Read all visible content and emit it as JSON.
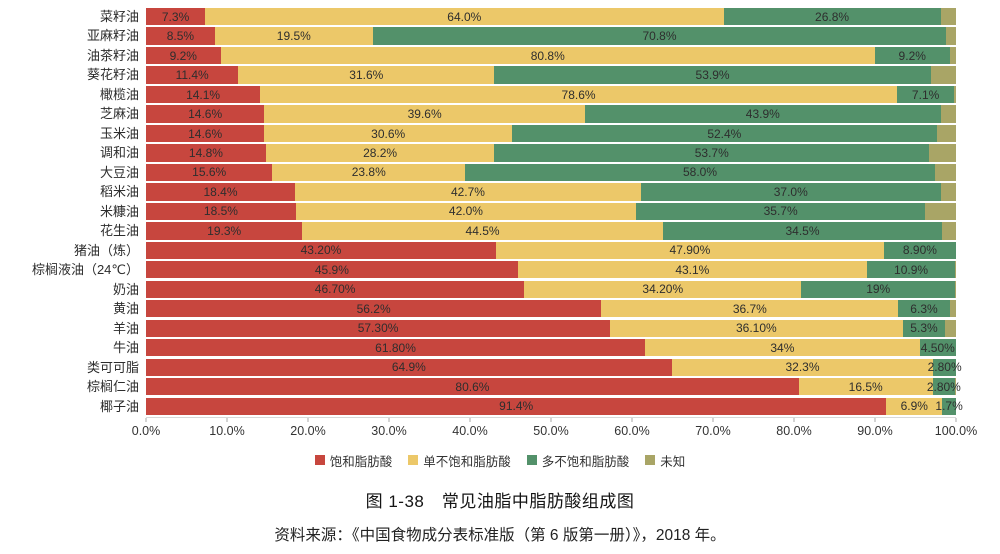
{
  "page": {
    "caption": "图 1-38　常见油脂中脂肪酸组成图",
    "source": "资料来源：《中国食物成分表标准版（第 6 版第一册）》，2018 年。"
  },
  "colors": {
    "saturated": "#c7463e",
    "monounsaturated": "#ecc869",
    "polyunsaturated": "#53916a",
    "unknown": "#a9a566"
  },
  "chart_data": {
    "type": "bar",
    "orientation": "horizontal-stacked",
    "title": "图 1-38　常见油脂中脂肪酸组成图",
    "xlabel": "",
    "ylabel": "",
    "xlim": [
      0,
      100
    ],
    "x_ticks": [
      "0.0%",
      "10.0%",
      "20.0%",
      "30.0%",
      "40.0%",
      "50.0%",
      "60.0%",
      "70.0%",
      "80.0%",
      "90.0%",
      "100.0%"
    ],
    "grid": false,
    "legend_position": "bottom",
    "legend": [
      {
        "name": "饱和脂肪酸",
        "color": "#c7463e"
      },
      {
        "name": "单不饱和脂肪酸",
        "color": "#ecc869"
      },
      {
        "name": "多不饱和脂肪酸",
        "color": "#53916a"
      },
      {
        "name": "未知",
        "color": "#a9a566"
      }
    ],
    "categories": [
      "菜籽油",
      "亚麻籽油",
      "油茶籽油",
      "葵花籽油",
      "橄榄油",
      "芝麻油",
      "玉米油",
      "调和油",
      "大豆油",
      "稻米油",
      "米糠油",
      "花生油",
      "猪油（炼）",
      "棕榈液油（24℃）",
      "奶油",
      "黄油",
      "羊油",
      "牛油",
      "类可可脂",
      "棕榈仁油",
      "椰子油"
    ],
    "series": [
      {
        "key": "saturated",
        "name": "饱和脂肪酸",
        "color": "#c7463e",
        "values": [
          7.3,
          8.5,
          9.2,
          11.4,
          14.1,
          14.6,
          14.6,
          14.8,
          15.6,
          18.4,
          18.5,
          19.3,
          43.2,
          45.9,
          46.7,
          56.2,
          57.3,
          61.8,
          64.9,
          80.6,
          91.4
        ]
      },
      {
        "key": "monounsaturated",
        "name": "单不饱和脂肪酸",
        "color": "#ecc869",
        "values": [
          64.0,
          19.5,
          80.8,
          31.6,
          78.6,
          39.6,
          30.6,
          28.2,
          23.8,
          42.7,
          42.0,
          44.5,
          47.9,
          43.1,
          34.2,
          36.7,
          36.1,
          34.0,
          32.3,
          16.5,
          6.9
        ]
      },
      {
        "key": "polyunsaturated",
        "name": "多不饱和脂肪酸",
        "color": "#53916a",
        "values": [
          26.8,
          70.8,
          9.2,
          53.9,
          7.1,
          43.9,
          52.4,
          53.7,
          58.0,
          37.0,
          35.7,
          34.5,
          8.9,
          10.9,
          19.0,
          6.3,
          5.3,
          4.5,
          2.8,
          2.8,
          1.7
        ]
      },
      {
        "key": "unknown",
        "name": "未知",
        "color": "#a9a566",
        "values": [
          1.9,
          1.2,
          0.8,
          3.1,
          0.2,
          1.9,
          2.4,
          3.3,
          2.6,
          1.9,
          3.8,
          1.7,
          0.0,
          0.1,
          0.1,
          0.8,
          1.3,
          0.0,
          0.0,
          0.1,
          0.0
        ]
      }
    ],
    "segment_labels": [
      [
        "7.3%",
        "64.0%",
        "26.8%"
      ],
      [
        "8.5%",
        "19.5%",
        "70.8%"
      ],
      [
        "9.2%",
        "80.8%",
        "9.2%"
      ],
      [
        "11.4%",
        "31.6%",
        "53.9%"
      ],
      [
        "14.1%",
        "78.6%",
        "7.1%"
      ],
      [
        "14.6%",
        "39.6%",
        "43.9%"
      ],
      [
        "14.6%",
        "30.6%",
        "52.4%"
      ],
      [
        "14.8%",
        "28.2%",
        "53.7%"
      ],
      [
        "15.6%",
        "23.8%",
        "58.0%"
      ],
      [
        "18.4%",
        "42.7%",
        "37.0%"
      ],
      [
        "18.5%",
        "42.0%",
        "35.7%"
      ],
      [
        "19.3%",
        "44.5%",
        "34.5%"
      ],
      [
        "43.20%",
        "47.90%",
        "8.90%"
      ],
      [
        "45.9%",
        "43.1%",
        "10.9%"
      ],
      [
        "46.70%",
        "34.20%",
        "19%"
      ],
      [
        "56.2%",
        "36.7%",
        "6.3%"
      ],
      [
        "57.30%",
        "36.10%",
        "5.3%"
      ],
      [
        "61.80%",
        "34%",
        "4.50%"
      ],
      [
        "64.9%",
        "32.3%",
        "2.80%"
      ],
      [
        "80.6%",
        "16.5%",
        "2.80%"
      ],
      [
        "91.4%",
        "6.9%",
        "1.7%"
      ]
    ]
  }
}
